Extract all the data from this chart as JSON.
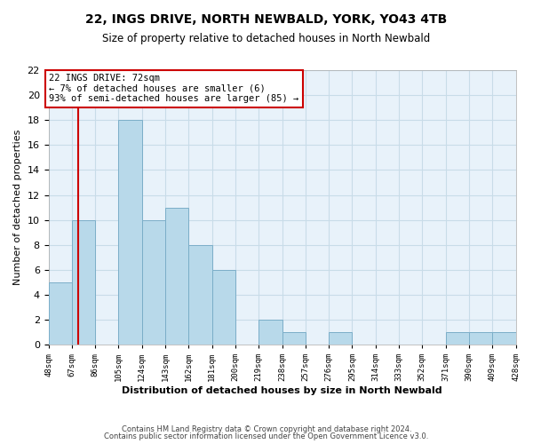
{
  "title": "22, INGS DRIVE, NORTH NEWBALD, YORK, YO43 4TB",
  "subtitle": "Size of property relative to detached houses in North Newbald",
  "xlabel": "Distribution of detached houses by size in North Newbald",
  "ylabel": "Number of detached properties",
  "bin_edges": [
    48,
    67,
    86,
    105,
    124,
    143,
    162,
    181,
    200,
    219,
    238,
    257,
    276,
    295,
    314,
    333,
    352,
    371,
    390,
    409,
    428
  ],
  "bin_labels": [
    "48sqm",
    "67sqm",
    "86sqm",
    "105sqm",
    "124sqm",
    "143sqm",
    "162sqm",
    "181sqm",
    "200sqm",
    "219sqm",
    "238sqm",
    "257sqm",
    "276sqm",
    "295sqm",
    "314sqm",
    "333sqm",
    "352sqm",
    "371sqm",
    "390sqm",
    "409sqm",
    "428sqm"
  ],
  "counts": [
    5,
    10,
    0,
    18,
    10,
    11,
    8,
    6,
    0,
    2,
    1,
    0,
    1,
    0,
    0,
    0,
    0,
    1,
    1,
    1
  ],
  "bar_color": "#b8d9ea",
  "bar_edge_color": "#7baec8",
  "property_line_x": 72,
  "annotation_title": "22 INGS DRIVE: 72sqm",
  "annotation_line1": "← 7% of detached houses are smaller (6)",
  "annotation_line2": "93% of semi-detached houses are larger (85) →",
  "annotation_box_color": "#ffffff",
  "annotation_box_edge_color": "#cc0000",
  "property_line_color": "#cc0000",
  "ylim": [
    0,
    22
  ],
  "footnote1": "Contains HM Land Registry data © Crown copyright and database right 2024.",
  "footnote2": "Contains public sector information licensed under the Open Government Licence v3.0.",
  "grid_color": "#c8dce8",
  "background_color": "#e8f2fa"
}
